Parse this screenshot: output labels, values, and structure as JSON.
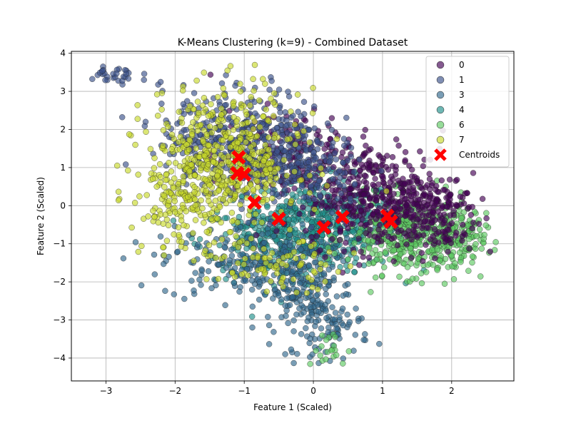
{
  "chart_data": {
    "type": "scatter",
    "title": "K-Means Clustering (k=9) - Combined Dataset",
    "xlabel": "Feature 1 (Scaled)",
    "ylabel": "Feature 2 (Scaled)",
    "xlim": [
      -3.5,
      2.9
    ],
    "ylim": [
      -4.6,
      4.05
    ],
    "xticks": [
      -3,
      -2,
      -1,
      0,
      1,
      2
    ],
    "yticks": [
      -4,
      -3,
      -2,
      -1,
      0,
      1,
      2,
      3,
      4
    ],
    "grid": true,
    "legend_position": "top-right",
    "series": [
      {
        "name": "0",
        "color": "#440154",
        "regions": [
          {
            "cx": 1.0,
            "cy": 0.2,
            "sx": 0.55,
            "sy": 0.65,
            "n": 420
          },
          {
            "cx": -0.3,
            "cy": 1.3,
            "sx": 0.6,
            "sy": 0.6,
            "n": 180
          },
          {
            "cx": 1.7,
            "cy": -0.3,
            "sx": 0.35,
            "sy": 0.5,
            "n": 120
          }
        ]
      },
      {
        "name": "1",
        "color": "#3b528b",
        "regions": [
          {
            "cx": -1.0,
            "cy": 1.7,
            "sx": 0.6,
            "sy": 0.7,
            "n": 420
          },
          {
            "cx": -0.2,
            "cy": 0.8,
            "sx": 0.5,
            "sy": 0.5,
            "n": 160
          },
          {
            "cx": -2.9,
            "cy": 3.4,
            "sx": 0.2,
            "sy": 0.15,
            "n": 30
          }
        ]
      },
      {
        "name": "3",
        "color": "#31688e",
        "regions": [
          {
            "cx": -1.0,
            "cy": -1.5,
            "sx": 0.6,
            "sy": 0.5,
            "n": 200
          },
          {
            "cx": -0.1,
            "cy": -2.3,
            "sx": 0.35,
            "sy": 0.7,
            "n": 180
          },
          {
            "cx": 0.3,
            "cy": -3.2,
            "sx": 0.25,
            "sy": 0.4,
            "n": 60
          }
        ]
      },
      {
        "name": "4",
        "color": "#21918c",
        "regions": [
          {
            "cx": 0.1,
            "cy": -0.5,
            "sx": 0.55,
            "sy": 0.6,
            "n": 460
          },
          {
            "cx": -0.6,
            "cy": -0.9,
            "sx": 0.5,
            "sy": 0.5,
            "n": 200
          }
        ]
      },
      {
        "name": "6",
        "color": "#5ec962",
        "regions": [
          {
            "cx": 1.4,
            "cy": -0.8,
            "sx": 0.45,
            "sy": 0.5,
            "n": 360
          },
          {
            "cx": 2.0,
            "cy": -1.0,
            "sx": 0.25,
            "sy": 0.4,
            "n": 120
          },
          {
            "cx": 0.2,
            "cy": -3.8,
            "sx": 0.15,
            "sy": 0.25,
            "n": 20
          }
        ]
      },
      {
        "name": "7",
        "color": "#c8d82b",
        "regions": [
          {
            "cx": -1.3,
            "cy": 1.2,
            "sx": 0.55,
            "sy": 0.9,
            "n": 520
          },
          {
            "cx": -1.9,
            "cy": 0.0,
            "sx": 0.3,
            "sy": 0.6,
            "n": 120
          },
          {
            "cx": -0.5,
            "cy": -1.6,
            "sx": 0.5,
            "sy": 0.3,
            "n": 80
          }
        ]
      }
    ],
    "centroids": {
      "name": "Centroids",
      "color": "#ff0000",
      "points": [
        {
          "x": -1.08,
          "y": 1.27
        },
        {
          "x": -1.1,
          "y": 0.85
        },
        {
          "x": -1.0,
          "y": 0.82
        },
        {
          "x": -0.85,
          "y": 0.08
        },
        {
          "x": -0.5,
          "y": -0.35
        },
        {
          "x": 0.15,
          "y": -0.57
        },
        {
          "x": 0.42,
          "y": -0.3
        },
        {
          "x": 1.07,
          "y": -0.27
        },
        {
          "x": 1.12,
          "y": -0.42
        }
      ]
    }
  }
}
